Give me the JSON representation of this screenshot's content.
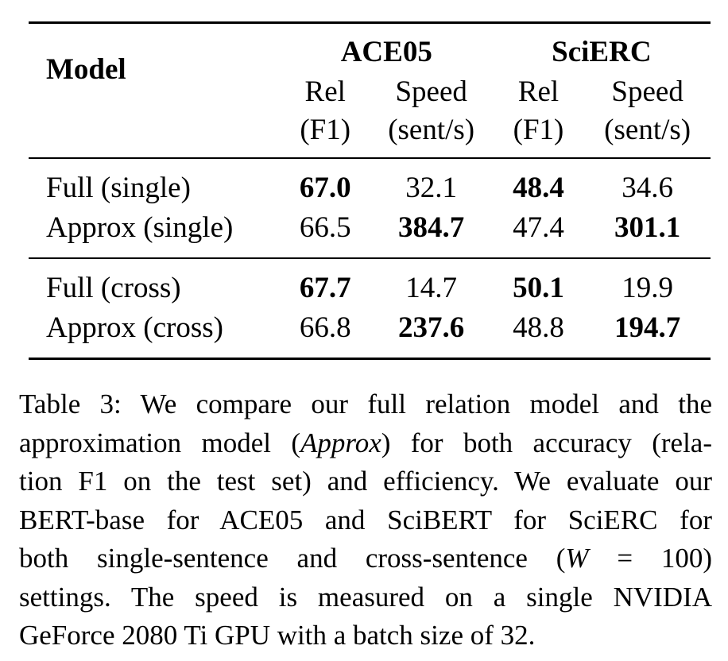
{
  "table": {
    "model_header": "Model",
    "groups": [
      "ACE05",
      "SciERC"
    ],
    "sub_header_top": [
      "Rel",
      "Speed",
      "Rel",
      "Speed"
    ],
    "sub_header_bottom": [
      "(F1)",
      "(sent/s)",
      "(F1)",
      "(sent/s)"
    ],
    "rows": [
      {
        "model": "Full (single)",
        "cells": [
          "67.0",
          "32.1",
          "48.4",
          "34.6"
        ],
        "bold": [
          true,
          false,
          true,
          false
        ]
      },
      {
        "model": "Approx (single)",
        "cells": [
          "66.5",
          "384.7",
          "47.4",
          "301.1"
        ],
        "bold": [
          false,
          true,
          false,
          true
        ]
      },
      {
        "model": "Full (cross)",
        "cells": [
          "67.7",
          "14.7",
          "50.1",
          "19.9"
        ],
        "bold": [
          true,
          false,
          true,
          false
        ]
      },
      {
        "model": "Approx (cross)",
        "cells": [
          "66.8",
          "237.6",
          "48.8",
          "194.7"
        ],
        "bold": [
          false,
          true,
          false,
          true
        ]
      }
    ]
  },
  "caption": {
    "line1": "Table 3: We compare our full relation model and the",
    "line2_pre": "approximation model (",
    "line2_italic": "Approx",
    "line2_post": ") for both accuracy (rela-",
    "line3": "tion F1 on the test set) and efficiency. We evaluate our",
    "line4": "BERT-base for ACE05 and SciBERT for SciERC for",
    "line5_pre": "both single-sentence and cross-sentence (",
    "line5_italic": "W",
    "line5_post": " = 100)",
    "line6": "settings. The speed is measured on a single NVIDIA",
    "line7": "GeForce 2080 Ti GPU with a batch size of 32."
  }
}
